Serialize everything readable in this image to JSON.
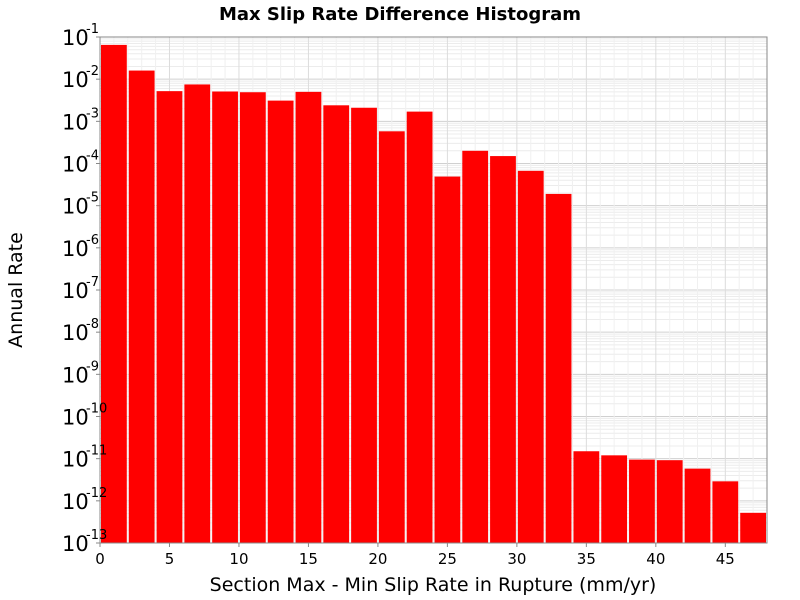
{
  "chart_data": {
    "type": "bar",
    "title": "Max Slip Rate Difference Histogram",
    "xlabel": "Section Max - Min Slip Rate in Rupture (mm/yr)",
    "ylabel": "Annual Rate",
    "y_scale": "log",
    "ylim": [
      1e-13,
      0.1
    ],
    "xlim": [
      0,
      48
    ],
    "bin_width": 2,
    "x": [
      1,
      3,
      5,
      7,
      9,
      11,
      13,
      15,
      17,
      19,
      21,
      23,
      25,
      27,
      29,
      31,
      33,
      35,
      37,
      39,
      41,
      43,
      45,
      47
    ],
    "values": [
      0.065,
      0.016,
      0.0052,
      0.0075,
      0.0051,
      0.0049,
      0.0031,
      0.005,
      0.0024,
      0.0021,
      0.00058,
      0.0017,
      4.9e-05,
      0.0002,
      0.00015,
      6.7e-05,
      1.9e-05,
      1.5e-11,
      1.2e-11,
      9.5e-12,
      9.2e-12,
      5.8e-12,
      2.9e-12,
      5.2e-13
    ],
    "color": "#ff0000",
    "grid": true,
    "legend": "none",
    "x_ticks": [
      "0",
      "5",
      "10",
      "15",
      "20",
      "25",
      "30",
      "35",
      "40",
      "45"
    ],
    "y_ticks": [
      {
        "base": "10",
        "exp": "-1"
      },
      {
        "base": "10",
        "exp": "-2"
      },
      {
        "base": "10",
        "exp": "-3"
      },
      {
        "base": "10",
        "exp": "-4"
      },
      {
        "base": "10",
        "exp": "-5"
      },
      {
        "base": "10",
        "exp": "-6"
      },
      {
        "base": "10",
        "exp": "-7"
      },
      {
        "base": "10",
        "exp": "-8"
      },
      {
        "base": "10",
        "exp": "-9"
      },
      {
        "base": "10",
        "exp": "-10"
      },
      {
        "base": "10",
        "exp": "-11"
      },
      {
        "base": "10",
        "exp": "-12"
      },
      {
        "base": "10",
        "exp": "-13"
      }
    ]
  }
}
